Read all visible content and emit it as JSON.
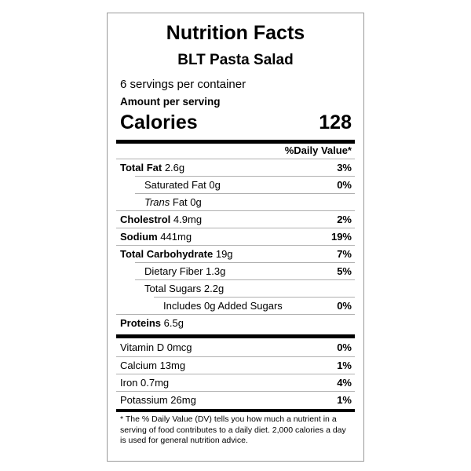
{
  "label": {
    "title": "Nutrition Facts",
    "product_name": "BLT Pasta Salad",
    "servings": "6 servings per container",
    "amount_per_serving": "Amount per serving",
    "calories_label": "Calories",
    "calories_value": "128",
    "daily_value_header": "%Daily Value*"
  },
  "nutrients": {
    "total_fat": {
      "name": "Total Fat",
      "amount": "2.6g",
      "dv": "3%"
    },
    "saturated_fat": {
      "name": "Saturated Fat 0g",
      "dv": "0%"
    },
    "trans_fat": {
      "name_italic": "Trans",
      "name_rest": "Fat 0g"
    },
    "cholesterol": {
      "name": "Cholestrol",
      "amount": "4.9mg",
      "dv": "2%"
    },
    "sodium": {
      "name": "Sodium",
      "amount": "441mg",
      "dv": "19%"
    },
    "total_carbohydrate": {
      "name": "Total Carbohydrate",
      "amount": "19g",
      "dv": "7%"
    },
    "dietary_fiber": {
      "name": "Dietary Fiber 1.3g",
      "dv": "5%"
    },
    "total_sugars": {
      "name": "Total Sugars 2.2g"
    },
    "added_sugars": {
      "name": "Includes 0g Added Sugars",
      "dv": "0%"
    },
    "proteins": {
      "name": "Proteins",
      "amount": "6.5g"
    }
  },
  "vitamins": {
    "vitamin_d": {
      "name": "Vitamin D 0mcg",
      "dv": "0%"
    },
    "calcium": {
      "name": "Calcium 13mg",
      "dv": "1%"
    },
    "iron": {
      "name": "Iron 0.7mg",
      "dv": "4%"
    },
    "potassium": {
      "name": "Potassium 26mg",
      "dv": "1%"
    }
  },
  "footnote": "* The % Daily Value (DV) tells you how much a nutrient in a serving of food contributes to a daily diet. 2,000 calories a day is used for general nutrition advice."
}
